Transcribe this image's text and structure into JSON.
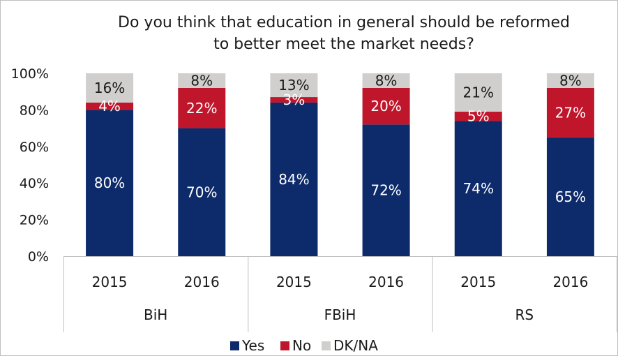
{
  "chart_data": {
    "type": "bar",
    "stacked": true,
    "percent": true,
    "title": "Do you think that education in general should be reformed to better meet the market needs?",
    "title_lines": [
      "Do you think that education in general should be reformed",
      "to better meet the market needs?"
    ],
    "groups": [
      "BiH",
      "FBiH",
      "RS"
    ],
    "categories": [
      "2015",
      "2016",
      "2015",
      "2016",
      "2015",
      "2016"
    ],
    "series": [
      {
        "name": "Yes",
        "color": "#0d2a6b",
        "values": [
          80,
          70,
          84,
          72,
          74,
          65
        ],
        "labels": [
          "80%",
          "70%",
          "84%",
          "72%",
          "74%",
          "65%"
        ],
        "label_color": "#ffffff"
      },
      {
        "name": "No",
        "color": "#c0162c",
        "values": [
          4,
          22,
          3,
          20,
          5,
          27
        ],
        "labels": [
          "4%",
          "22%",
          "3%",
          "20%",
          "5%",
          "27%"
        ],
        "label_color": "#ffffff"
      },
      {
        "name": "DK/NA",
        "color": "#d0cfcd",
        "values": [
          16,
          8,
          13,
          8,
          21,
          8
        ],
        "labels": [
          "16%",
          "8%",
          "13%",
          "8%",
          "21%",
          "8%"
        ],
        "label_color": "#1a1a1a"
      }
    ],
    "ylim": [
      0,
      100
    ],
    "yticks": [
      "0%",
      "20%",
      "40%",
      "60%",
      "80%",
      "100%"
    ],
    "grid": false,
    "legend_position": "bottom"
  }
}
